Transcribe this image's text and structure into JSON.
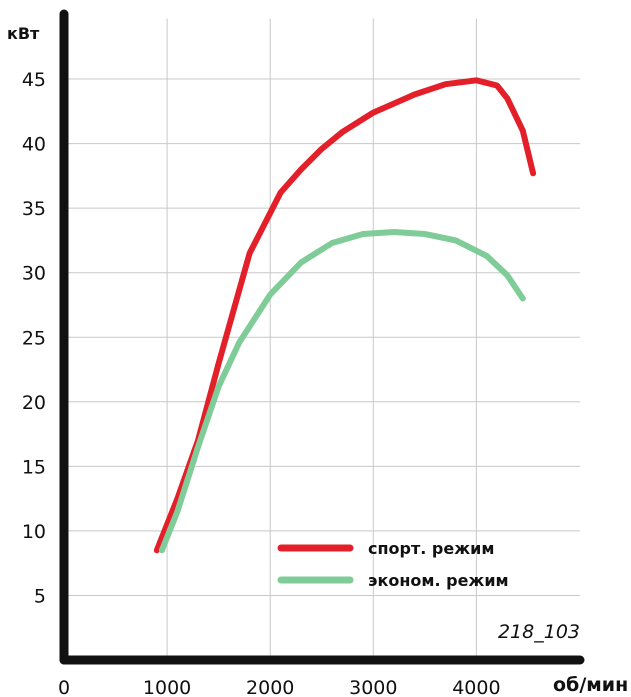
{
  "chart_data": {
    "type": "line",
    "xlabel": "об/мин",
    "ylabel": "кВт",
    "x_ticks": [
      0,
      1000,
      2000,
      3000,
      4000
    ],
    "y_ticks": [
      5,
      10,
      15,
      20,
      25,
      30,
      35,
      40,
      45
    ],
    "xlim": [
      0,
      5000
    ],
    "ylim": [
      0,
      50
    ],
    "grid": true,
    "legend_position": "bottom-right",
    "annotation": "218_103",
    "series": [
      {
        "name": "спорт. режим",
        "color": "#e3202a",
        "points": [
          [
            900,
            8.5
          ],
          [
            1100,
            12.5
          ],
          [
            1300,
            17
          ],
          [
            1500,
            23
          ],
          [
            1800,
            31.5
          ],
          [
            2100,
            36.2
          ],
          [
            2300,
            38
          ],
          [
            2500,
            39.6
          ],
          [
            2700,
            40.9
          ],
          [
            3000,
            42.4
          ],
          [
            3400,
            43.8
          ],
          [
            3700,
            44.6
          ],
          [
            4000,
            44.9
          ],
          [
            4200,
            44.5
          ],
          [
            4300,
            43.5
          ],
          [
            4450,
            41
          ],
          [
            4550,
            37.7
          ]
        ]
      },
      {
        "name": "эконом. режим",
        "color": "#7fcc98",
        "points": [
          [
            950,
            8.5
          ],
          [
            1100,
            11.5
          ],
          [
            1300,
            16.5
          ],
          [
            1500,
            21.2
          ],
          [
            1700,
            24.6
          ],
          [
            2000,
            28.3
          ],
          [
            2300,
            30.8
          ],
          [
            2600,
            32.3
          ],
          [
            2900,
            33.0
          ],
          [
            3200,
            33.15
          ],
          [
            3500,
            33.0
          ],
          [
            3800,
            32.5
          ],
          [
            4100,
            31.3
          ],
          [
            4300,
            29.8
          ],
          [
            4450,
            28.0
          ]
        ]
      }
    ]
  }
}
